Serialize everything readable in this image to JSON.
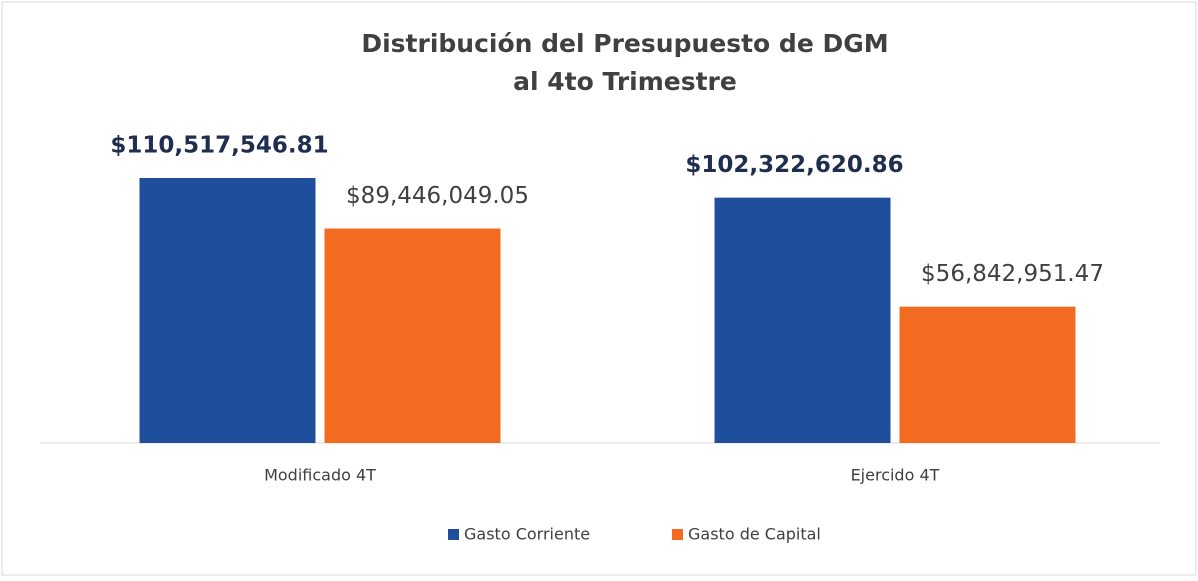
{
  "chart_data": {
    "type": "bar",
    "title": [
      "Distribución  del Presupuesto de DGM",
      "al 4to Trimestre"
    ],
    "categories": [
      "Modificado 4T",
      "Ejercido 4T"
    ],
    "series": [
      {
        "name": "Gasto Corriente",
        "color": "#1f4e9c",
        "values": [
          110517546.81,
          102322620.86
        ],
        "value_labels": [
          "$110,517,546.81",
          "$102,322,620.86"
        ]
      },
      {
        "name": "Gasto de Capital",
        "color": "#f26b21",
        "values": [
          89446049.05,
          56842951.47
        ],
        "value_labels": [
          "$89,446,049.05",
          "$56,842,951.47"
        ]
      }
    ]
  }
}
